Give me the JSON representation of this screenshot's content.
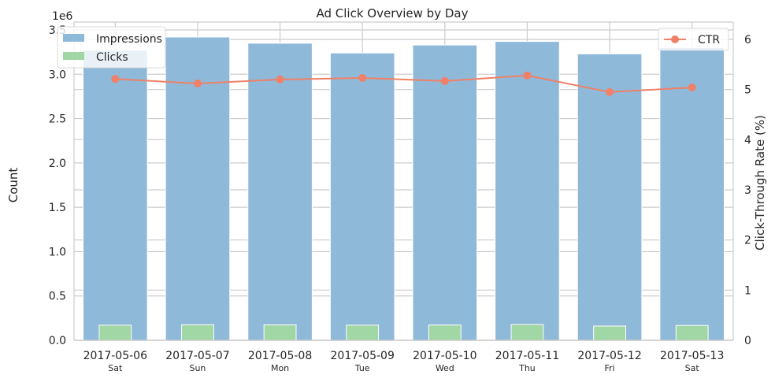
{
  "chart_data": {
    "type": "bar",
    "title": "Ad Click Overview by Day",
    "categories": [
      "2017-05-06",
      "2017-05-07",
      "2017-05-08",
      "2017-05-09",
      "2017-05-10",
      "2017-05-11",
      "2017-05-12",
      "2017-05-13"
    ],
    "weekdays": [
      "Sat",
      "Sun",
      "Mon",
      "Tue",
      "Wed",
      "Thu",
      "Fri",
      "Sat"
    ],
    "left_axis": {
      "label": "Count",
      "scale_label": "1e6",
      "ylim": [
        0,
        3.5
      ],
      "ticks": [
        "0.0",
        "0.5",
        "1.0",
        "1.5",
        "2.0",
        "2.5",
        "3.0",
        "3.5"
      ]
    },
    "right_axis": {
      "label": "Click-Through Rate (%)",
      "ylim": [
        0,
        6.3
      ],
      "ticks": [
        "0",
        "1",
        "2",
        "3",
        "4",
        "5",
        "6"
      ]
    },
    "series": [
      {
        "name": "Impressions",
        "kind": "bar",
        "axis": "left",
        "color": "#8fb9d8",
        "values": [
          3.27,
          3.42,
          3.35,
          3.24,
          3.33,
          3.37,
          3.23,
          3.3
        ]
      },
      {
        "name": "Clicks",
        "kind": "bar",
        "axis": "left",
        "color": "#a1d6a5",
        "values": [
          0.17,
          0.175,
          0.174,
          0.17,
          0.172,
          0.178,
          0.16,
          0.167
        ]
      },
      {
        "name": "CTR",
        "kind": "line",
        "axis": "right",
        "color": "#f08068",
        "values": [
          5.21,
          5.12,
          5.2,
          5.23,
          5.17,
          5.28,
          4.95,
          5.04
        ]
      }
    ],
    "legend_left": "upper-left",
    "legend_right": "upper-right",
    "grid": true
  }
}
